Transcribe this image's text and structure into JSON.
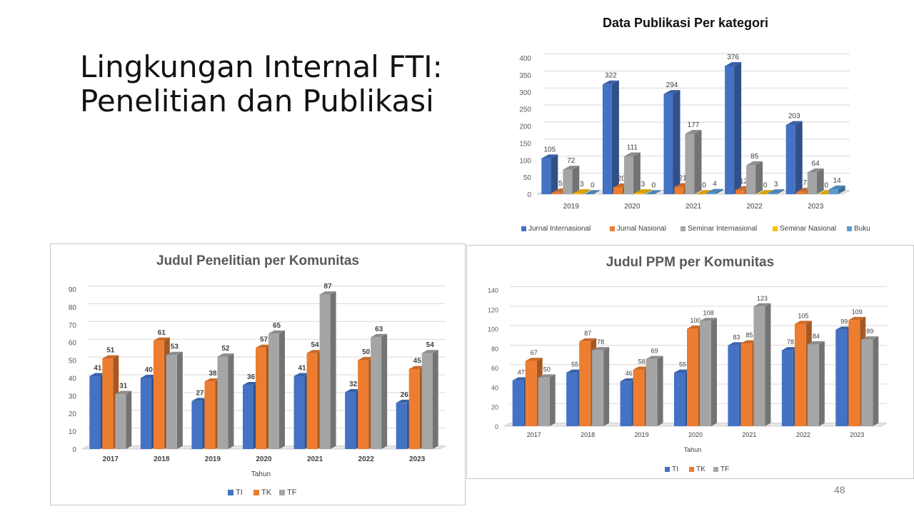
{
  "slide": {
    "title_line1": "Lingkungan Internal FTI:",
    "title_line2": "Penelitian dan Publikasi",
    "page_number": "48"
  },
  "chart_data": [
    {
      "id": "publikasi",
      "type": "bar",
      "title": "Data Publikasi Per kategori",
      "categories": [
        "2019",
        "2020",
        "2021",
        "2022",
        "2023"
      ],
      "series": [
        {
          "name": "Jurnal Internasional",
          "color": "#4472C4",
          "values": [
            105,
            322,
            294,
            376,
            203
          ]
        },
        {
          "name": "Jurnal Nasional",
          "color": "#ED7D31",
          "values": [
            5,
            20,
            21,
            12,
            7
          ]
        },
        {
          "name": "Seminar Internasional",
          "color": "#A5A5A5",
          "values": [
            72,
            111,
            177,
            85,
            64
          ]
        },
        {
          "name": "Seminar Nasional",
          "color": "#FFC000",
          "values": [
            3,
            3,
            0,
            0,
            0
          ]
        },
        {
          "name": "Buku",
          "color": "#5B9BD5",
          "values": [
            0,
            0,
            4,
            3,
            14
          ]
        }
      ],
      "xlabel": "",
      "ylabel": "",
      "ylim": [
        0,
        400
      ],
      "yticks": [
        0,
        50,
        100,
        150,
        200,
        250,
        300,
        350,
        400
      ],
      "grid": true,
      "legend": "bottom"
    },
    {
      "id": "penelitian",
      "type": "bar",
      "title": "Judul Penelitian per Komunitas",
      "categories": [
        "2017",
        "2018",
        "2019",
        "2020",
        "2021",
        "2022",
        "2023"
      ],
      "series": [
        {
          "name": "TI",
          "color": "#4472C4",
          "values": [
            41,
            40,
            27,
            36,
            41,
            32,
            26
          ]
        },
        {
          "name": "TK",
          "color": "#ED7D31",
          "values": [
            51,
            61,
            38,
            57,
            54,
            50,
            45
          ]
        },
        {
          "name": "TF",
          "color": "#A5A5A5",
          "values": [
            31,
            53,
            52,
            65,
            87,
            63,
            54
          ]
        }
      ],
      "xlabel": "Tahun",
      "ylabel": "",
      "ylim": [
        0,
        90
      ],
      "yticks": [
        0,
        10,
        20,
        30,
        40,
        50,
        60,
        70,
        80,
        90
      ],
      "grid": true,
      "legend": "bottom"
    },
    {
      "id": "ppm",
      "type": "bar",
      "title": "Judul PPM per Komunitas",
      "categories": [
        "2017",
        "2018",
        "2019",
        "2020",
        "2021",
        "2022",
        "2023"
      ],
      "series": [
        {
          "name": "TI",
          "color": "#4472C4",
          "values": [
            47,
            55,
            46,
            55,
            83,
            78,
            99
          ]
        },
        {
          "name": "TK",
          "color": "#ED7D31",
          "values": [
            67,
            87,
            58,
            100,
            85,
            105,
            109
          ]
        },
        {
          "name": "TF",
          "color": "#A5A5A5",
          "values": [
            50,
            78,
            69,
            108,
            123,
            84,
            89
          ]
        }
      ],
      "xlabel": "Tahun",
      "ylabel": "",
      "ylim": [
        0,
        140
      ],
      "yticks": [
        0,
        20,
        40,
        60,
        80,
        100,
        120,
        140
      ],
      "grid": true,
      "legend": "bottom"
    }
  ]
}
